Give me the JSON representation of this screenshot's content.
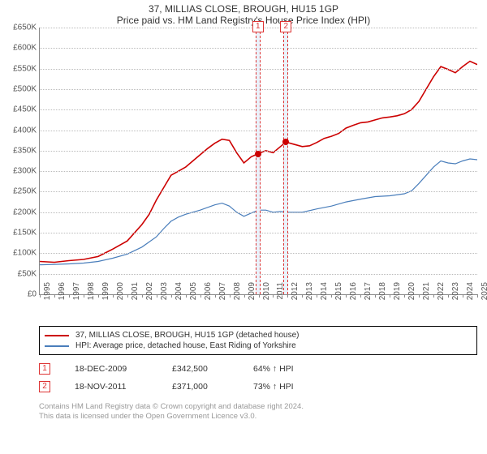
{
  "title": "37, MILLIAS CLOSE, BROUGH, HU15 1GP",
  "subtitle": "Price paid vs. HM Land Registry's House Price Index (HPI)",
  "chart": {
    "type": "line",
    "background_color": "#ffffff",
    "grid_color": "#bbbbbb",
    "ylim": [
      0,
      650000
    ],
    "ytick_step": 50000,
    "ytick_labels": [
      "£0",
      "£50K",
      "£100K",
      "£150K",
      "£200K",
      "£250K",
      "£300K",
      "£350K",
      "£400K",
      "£450K",
      "£500K",
      "£550K",
      "£600K",
      "£650K"
    ],
    "xlim": [
      1995,
      2025
    ],
    "xticks": [
      1995,
      1996,
      1997,
      1998,
      1999,
      2000,
      2001,
      2002,
      2003,
      2004,
      2005,
      2006,
      2007,
      2008,
      2009,
      2010,
      2011,
      2012,
      2013,
      2014,
      2015,
      2016,
      2017,
      2018,
      2019,
      2020,
      2021,
      2022,
      2023,
      2024,
      2025
    ],
    "series": [
      {
        "name": "addr",
        "label": "37, MILLIAS CLOSE, BROUGH, HU15 1GP (detached house)",
        "color": "#cc0000",
        "width": 1.6,
        "data": [
          [
            1995,
            80000
          ],
          [
            1996,
            78000
          ],
          [
            1997,
            82000
          ],
          [
            1998,
            85000
          ],
          [
            1999,
            92000
          ],
          [
            2000,
            110000
          ],
          [
            2001,
            130000
          ],
          [
            2002,
            170000
          ],
          [
            2002.5,
            195000
          ],
          [
            2003,
            230000
          ],
          [
            2003.5,
            260000
          ],
          [
            2004,
            290000
          ],
          [
            2004.5,
            300000
          ],
          [
            2005,
            310000
          ],
          [
            2005.5,
            325000
          ],
          [
            2006,
            340000
          ],
          [
            2006.5,
            355000
          ],
          [
            2007,
            368000
          ],
          [
            2007.5,
            378000
          ],
          [
            2008,
            375000
          ],
          [
            2008.5,
            345000
          ],
          [
            2009,
            320000
          ],
          [
            2009.5,
            335000
          ],
          [
            2009.96,
            342500
          ],
          [
            2010.5,
            350000
          ],
          [
            2011,
            345000
          ],
          [
            2011.5,
            360000
          ],
          [
            2011.88,
            371000
          ],
          [
            2012.5,
            365000
          ],
          [
            2013,
            360000
          ],
          [
            2013.5,
            362000
          ],
          [
            2014,
            370000
          ],
          [
            2014.5,
            380000
          ],
          [
            2015,
            385000
          ],
          [
            2015.5,
            392000
          ],
          [
            2016,
            405000
          ],
          [
            2016.5,
            412000
          ],
          [
            2017,
            418000
          ],
          [
            2017.5,
            420000
          ],
          [
            2018,
            425000
          ],
          [
            2018.5,
            430000
          ],
          [
            2019,
            432000
          ],
          [
            2019.5,
            435000
          ],
          [
            2020,
            440000
          ],
          [
            2020.5,
            450000
          ],
          [
            2021,
            470000
          ],
          [
            2021.5,
            500000
          ],
          [
            2022,
            530000
          ],
          [
            2022.5,
            555000
          ],
          [
            2023,
            548000
          ],
          [
            2023.5,
            540000
          ],
          [
            2024,
            555000
          ],
          [
            2024.5,
            568000
          ],
          [
            2025,
            560000
          ]
        ]
      },
      {
        "name": "hpi",
        "label": "HPI: Average price, detached house, East Riding of Yorkshire",
        "color": "#4a7ebb",
        "width": 1.2,
        "data": [
          [
            1995,
            72000
          ],
          [
            1996,
            73000
          ],
          [
            1997,
            74000
          ],
          [
            1998,
            76000
          ],
          [
            1999,
            80000
          ],
          [
            2000,
            88000
          ],
          [
            2001,
            98000
          ],
          [
            2002,
            115000
          ],
          [
            2003,
            140000
          ],
          [
            2003.5,
            160000
          ],
          [
            2004,
            178000
          ],
          [
            2004.5,
            188000
          ],
          [
            2005,
            195000
          ],
          [
            2006,
            205000
          ],
          [
            2007,
            218000
          ],
          [
            2007.5,
            222000
          ],
          [
            2008,
            215000
          ],
          [
            2008.5,
            200000
          ],
          [
            2009,
            190000
          ],
          [
            2009.5,
            198000
          ],
          [
            2010,
            205000
          ],
          [
            2010.5,
            205000
          ],
          [
            2011,
            200000
          ],
          [
            2011.5,
            202000
          ],
          [
            2012,
            200000
          ],
          [
            2012.5,
            200000
          ],
          [
            2013,
            200000
          ],
          [
            2014,
            208000
          ],
          [
            2015,
            215000
          ],
          [
            2016,
            225000
          ],
          [
            2017,
            232000
          ],
          [
            2018,
            238000
          ],
          [
            2019,
            240000
          ],
          [
            2020,
            245000
          ],
          [
            2020.5,
            252000
          ],
          [
            2021,
            270000
          ],
          [
            2021.5,
            290000
          ],
          [
            2022,
            310000
          ],
          [
            2022.5,
            325000
          ],
          [
            2023,
            320000
          ],
          [
            2023.5,
            318000
          ],
          [
            2024,
            325000
          ],
          [
            2024.5,
            330000
          ],
          [
            2025,
            328000
          ]
        ]
      }
    ],
    "event_bands": [
      {
        "num": "1",
        "x": 2009.96,
        "width_years": 0.35
      },
      {
        "num": "2",
        "x": 2011.88,
        "width_years": 0.35
      }
    ],
    "markers": [
      {
        "x": 2009.96,
        "y": 342500,
        "color": "#cc0000"
      },
      {
        "x": 2011.88,
        "y": 371000,
        "color": "#cc0000"
      }
    ]
  },
  "legend": {
    "addr_color": "#cc0000",
    "hpi_color": "#4a7ebb"
  },
  "events": [
    {
      "num": "1",
      "date": "18-DEC-2009",
      "price": "£342,500",
      "pct": "64% ↑ HPI"
    },
    {
      "num": "2",
      "date": "18-NOV-2011",
      "price": "£371,000",
      "pct": "73% ↑ HPI"
    }
  ],
  "footer1": "Contains HM Land Registry data © Crown copyright and database right 2024.",
  "footer2": "This data is licensed under the Open Government Licence v3.0."
}
